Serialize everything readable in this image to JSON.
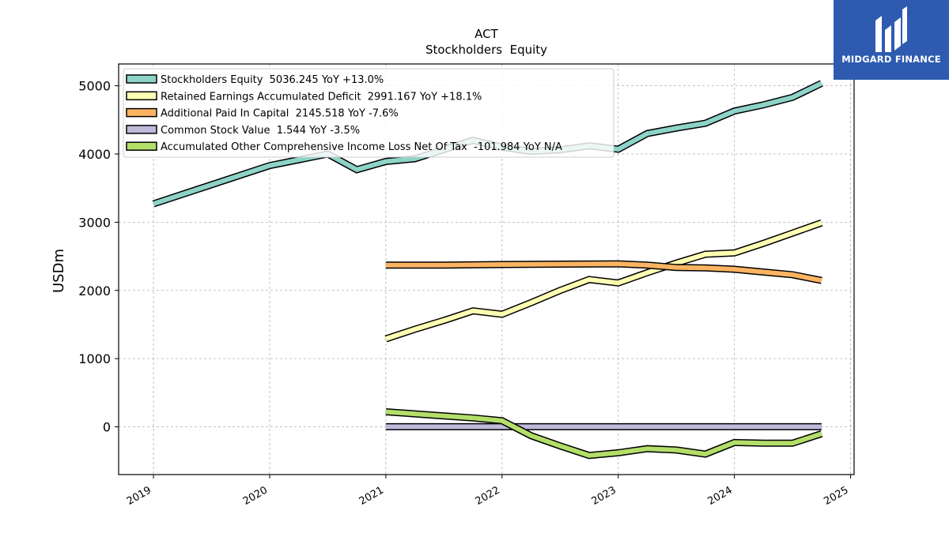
{
  "logo": {
    "text": "MIDGARD FINANCE",
    "mark": "midgard-logo-mark"
  },
  "chart_data": {
    "type": "line",
    "title": "ACT",
    "subtitle": "Stockholders  Equity",
    "ylabel": "USDm",
    "xlabel": "",
    "x_ticks": [
      2019,
      2020,
      2021,
      2022,
      2023,
      2024,
      2025
    ],
    "y_ticks": [
      0,
      1000,
      2000,
      3000,
      4000,
      5000
    ],
    "xlim": [
      2018.7,
      2025.03
    ],
    "ylim": [
      -700,
      5320
    ],
    "grid": true,
    "legend_position": "top-left",
    "colors": {
      "grid": "#b0b0b0",
      "outline": "#000000"
    },
    "series": [
      {
        "name": "Stockholders Equity",
        "legend": "Stockholders Equity  5036.245 YoY +13.0%",
        "color": "#8dd3c7",
        "points": [
          [
            2019.0,
            3270
          ],
          [
            2020.0,
            3830
          ],
          [
            2020.5,
            4000
          ],
          [
            2020.75,
            3770
          ],
          [
            2021.0,
            3890
          ],
          [
            2021.25,
            3930
          ],
          [
            2021.75,
            4200
          ],
          [
            2022.0,
            4100
          ],
          [
            2022.25,
            4040
          ],
          [
            2022.5,
            4060
          ],
          [
            2022.75,
            4120
          ],
          [
            2023.0,
            4070
          ],
          [
            2023.25,
            4300
          ],
          [
            2023.5,
            4380
          ],
          [
            2023.75,
            4450
          ],
          [
            2024.0,
            4630
          ],
          [
            2024.25,
            4720
          ],
          [
            2024.5,
            4830
          ],
          [
            2024.75,
            5036.245
          ]
        ]
      },
      {
        "name": "Retained Earnings Accumulated Deficit",
        "legend": "Retained Earnings Accumulated Deficit  2991.167 YoY +18.1%",
        "color": "#ffffb3",
        "points": [
          [
            2021.0,
            1290
          ],
          [
            2021.25,
            1430
          ],
          [
            2021.5,
            1560
          ],
          [
            2021.75,
            1700
          ],
          [
            2022.0,
            1650
          ],
          [
            2022.25,
            1820
          ],
          [
            2022.5,
            2000
          ],
          [
            2022.75,
            2160
          ],
          [
            2023.0,
            2110
          ],
          [
            2023.25,
            2260
          ],
          [
            2023.5,
            2400
          ],
          [
            2023.75,
            2530
          ],
          [
            2024.0,
            2550
          ],
          [
            2024.25,
            2690
          ],
          [
            2024.5,
            2840
          ],
          [
            2024.75,
            2991.167
          ]
        ]
      },
      {
        "name": "Additional Paid In Capital",
        "legend": "Additional Paid In Capital  2145.518 YoY -7.6%",
        "color": "#fdb462",
        "points": [
          [
            2021.0,
            2370
          ],
          [
            2021.5,
            2370
          ],
          [
            2022.0,
            2380
          ],
          [
            2022.5,
            2385
          ],
          [
            2023.0,
            2390
          ],
          [
            2023.25,
            2370
          ],
          [
            2023.5,
            2335
          ],
          [
            2023.75,
            2330
          ],
          [
            2024.0,
            2310
          ],
          [
            2024.25,
            2270
          ],
          [
            2024.5,
            2230
          ],
          [
            2024.75,
            2145.518
          ]
        ]
      },
      {
        "name": "Common Stock Value",
        "legend": "Common Stock Value  1.544 YoY -3.5%",
        "color": "#bebada",
        "points": [
          [
            2021.0,
            1.6
          ],
          [
            2021.5,
            1.6
          ],
          [
            2022.0,
            1.6
          ],
          [
            2022.5,
            1.6
          ],
          [
            2023.0,
            1.6
          ],
          [
            2023.5,
            1.6
          ],
          [
            2024.0,
            1.6
          ],
          [
            2024.75,
            1.544
          ]
        ]
      },
      {
        "name": "Accumulated Other Comprehensive Income Loss Net Of Tax",
        "legend": "Accumulated Other Comprehensive Income Loss Net Of Tax  -101.984 YoY N/A",
        "color": "#b3de69",
        "points": [
          [
            2021.0,
            220
          ],
          [
            2021.25,
            190
          ],
          [
            2021.5,
            160
          ],
          [
            2021.75,
            130
          ],
          [
            2022.0,
            90
          ],
          [
            2022.25,
            -130
          ],
          [
            2022.5,
            -280
          ],
          [
            2022.75,
            -420
          ],
          [
            2023.0,
            -380
          ],
          [
            2023.25,
            -320
          ],
          [
            2023.5,
            -340
          ],
          [
            2023.75,
            -400
          ],
          [
            2024.0,
            -230
          ],
          [
            2024.25,
            -240
          ],
          [
            2024.5,
            -240
          ],
          [
            2024.75,
            -101.984
          ]
        ]
      }
    ]
  }
}
